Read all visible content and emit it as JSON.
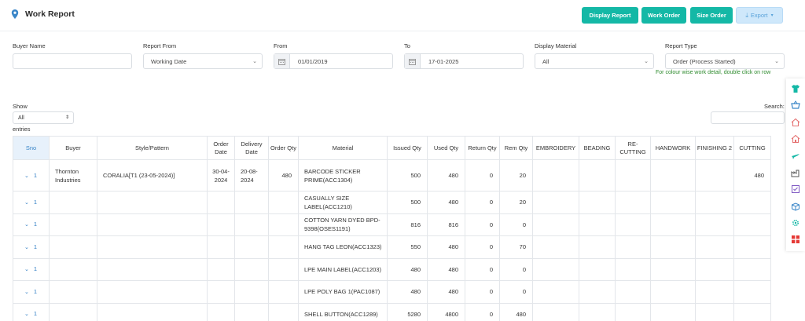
{
  "header": {
    "title": "Work Report",
    "buttons": {
      "display_report": "Display Report",
      "work_order": "Work Order",
      "size_order": "Size Order",
      "export": "Export"
    }
  },
  "filters": {
    "buyer_name": {
      "label": "Buyer Name",
      "value": ""
    },
    "report_from": {
      "label": "Report From",
      "value": "Working Date"
    },
    "from": {
      "label": "From",
      "value": "01/01/2019"
    },
    "to": {
      "label": "To",
      "value": "17-01-2025"
    },
    "display_material": {
      "label": "Display Material",
      "value": "All"
    },
    "report_type": {
      "label": "Report Type",
      "value": "Order (Process Started)"
    },
    "hint": "For colour wise work detail, double click on row"
  },
  "table_controls": {
    "show_label": "Show",
    "show_value": "All",
    "entries_label": "entries",
    "search_label": "Search:"
  },
  "table": {
    "columns": [
      "Sno",
      "Buyer",
      "Style/Pattern",
      "Order Date",
      "Delivery Date",
      "Order Qty",
      "Material",
      "Issued Qty",
      "Used Qty",
      "Return Qty",
      "Rem Qty",
      "EMBROIDERY",
      "BEADING",
      "RE-CUTTING",
      "HANDWORK",
      "FINISHING 2",
      "CUTTING"
    ],
    "rows": [
      {
        "sno": "1",
        "buyer": "Thornton Industries",
        "style": "CORALIA[T1 (23-05-2024)]",
        "order_date": "30-04-2024",
        "delivery_date": "20-08-2024",
        "order_qty": "480",
        "material": "BARCODE STICKER PRIME(ACC1304)",
        "issued": "500",
        "used": "480",
        "returned": "0",
        "rem": "20",
        "embroidery": "",
        "beading": "",
        "recutting": "",
        "handwork": "",
        "finishing2": "",
        "cutting": "480"
      },
      {
        "sno": "1",
        "buyer": "",
        "style": "",
        "order_date": "",
        "delivery_date": "",
        "order_qty": "",
        "material": "CASUALLY SIZE LABEL(ACC1210)",
        "issued": "500",
        "used": "480",
        "returned": "0",
        "rem": "20",
        "embroidery": "",
        "beading": "",
        "recutting": "",
        "handwork": "",
        "finishing2": "",
        "cutting": ""
      },
      {
        "sno": "1",
        "buyer": "",
        "style": "",
        "order_date": "",
        "delivery_date": "",
        "order_qty": "",
        "material": "COTTON YARN DYED BPD-9398(OSES1191)",
        "issued": "816",
        "used": "816",
        "returned": "0",
        "rem": "0",
        "embroidery": "",
        "beading": "",
        "recutting": "",
        "handwork": "",
        "finishing2": "",
        "cutting": ""
      },
      {
        "sno": "1",
        "buyer": "",
        "style": "",
        "order_date": "",
        "delivery_date": "",
        "order_qty": "",
        "material": "HANG TAG LEON(ACC1323)",
        "issued": "550",
        "used": "480",
        "returned": "0",
        "rem": "70",
        "embroidery": "",
        "beading": "",
        "recutting": "",
        "handwork": "",
        "finishing2": "",
        "cutting": ""
      },
      {
        "sno": "1",
        "buyer": "",
        "style": "",
        "order_date": "",
        "delivery_date": "",
        "order_qty": "",
        "material": "LPE MAIN LABEL(ACC1203)",
        "issued": "480",
        "used": "480",
        "returned": "0",
        "rem": "0",
        "embroidery": "",
        "beading": "",
        "recutting": "",
        "handwork": "",
        "finishing2": "",
        "cutting": ""
      },
      {
        "sno": "1",
        "buyer": "",
        "style": "",
        "order_date": "",
        "delivery_date": "",
        "order_qty": "",
        "material": "LPE POLY BAG 1(PAC1087)",
        "issued": "480",
        "used": "480",
        "returned": "0",
        "rem": "0",
        "embroidery": "",
        "beading": "",
        "recutting": "",
        "handwork": "",
        "finishing2": "",
        "cutting": ""
      },
      {
        "sno": "1",
        "buyer": "",
        "style": "",
        "order_date": "",
        "delivery_date": "",
        "order_qty": "",
        "material": "SHELL BUTTON(ACC1289)",
        "issued": "5280",
        "used": "4800",
        "returned": "0",
        "rem": "480",
        "embroidery": "",
        "beading": "",
        "recutting": "",
        "handwork": "",
        "finishing2": "",
        "cutting": ""
      }
    ]
  },
  "sidebar_icons": [
    "tshirt-icon",
    "basket-icon",
    "home-icon",
    "home-outline-icon",
    "plane-icon",
    "factory-icon",
    "checklist-icon",
    "box-icon",
    "gear-icon",
    "grid-icon"
  ],
  "colors": {
    "accent": "#14b8a6",
    "link": "#2f7dc4",
    "hint": "#2e8b2e"
  }
}
